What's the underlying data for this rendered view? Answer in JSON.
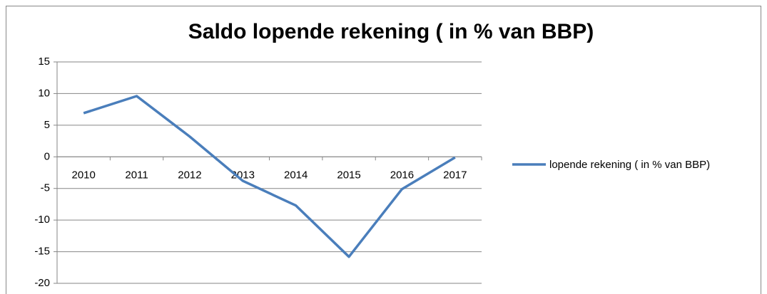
{
  "chart_data": {
    "type": "line",
    "title": "Saldo lopende rekening ( in % van BBP)",
    "categories": [
      "2010",
      "2011",
      "2012",
      "2013",
      "2014",
      "2015",
      "2016",
      "2017"
    ],
    "series": [
      {
        "name": "lopende rekening ( in % van BBP)",
        "color": "#4a7ebb",
        "values": [
          6.9,
          9.6,
          3.2,
          -3.8,
          -7.7,
          -15.8,
          -5.1,
          -0.1
        ]
      }
    ],
    "ylim": [
      -20,
      15
    ],
    "yticks": [
      -20,
      -15,
      -10,
      -5,
      0,
      5,
      10,
      15
    ],
    "grid": true,
    "legend": "right"
  }
}
